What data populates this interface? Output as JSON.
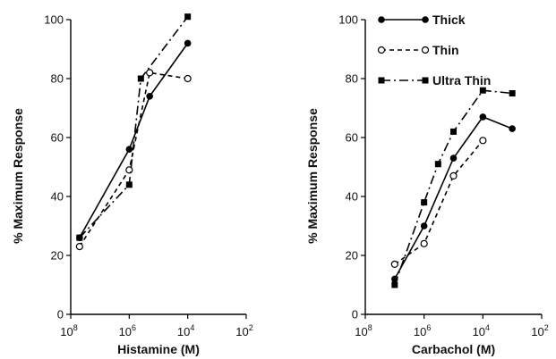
{
  "chart_data": [
    {
      "type": "line",
      "xlabel": "Histamine (M)",
      "ylabel": "% Maximum Response",
      "xscale": "log",
      "xlim": [
        1e-08,
        0.01
      ],
      "ylim": [
        0,
        100
      ],
      "xticks": [
        1e-08,
        1e-06,
        0.0001,
        0.01
      ],
      "yticks": [
        0,
        20,
        40,
        60,
        80,
        100
      ],
      "series": [
        {
          "name": "Thick",
          "x": [
            2e-08,
            1e-06,
            5e-06,
            0.0001
          ],
          "y": [
            26,
            56,
            74,
            92
          ]
        },
        {
          "name": "Thin",
          "x": [
            2e-08,
            1e-06,
            5e-06,
            0.0001
          ],
          "y": [
            23,
            49,
            82,
            80
          ]
        },
        {
          "name": "Ultra Thin",
          "x": [
            2e-08,
            1e-06,
            2.5e-06,
            0.0001
          ],
          "y": [
            26,
            44,
            80,
            101
          ]
        }
      ]
    },
    {
      "type": "line",
      "xlabel": "Carbachol (M)",
      "ylabel": "% Maximum Response",
      "xscale": "log",
      "xlim": [
        1e-08,
        0.01
      ],
      "ylim": [
        0,
        100
      ],
      "xticks": [
        1e-08,
        1e-06,
        0.0001,
        0.01
      ],
      "yticks": [
        0,
        20,
        40,
        60,
        80,
        100
      ],
      "legend_position": "top-right",
      "series": [
        {
          "name": "Thick",
          "x": [
            1e-07,
            1e-06,
            1e-05,
            0.0001,
            0.001
          ],
          "y": [
            12,
            30,
            53,
            67,
            63
          ]
        },
        {
          "name": "Thin",
          "x": [
            1e-07,
            1e-06,
            1e-05,
            0.0001
          ],
          "y": [
            17,
            24,
            47,
            59
          ]
        },
        {
          "name": "Ultra Thin",
          "x": [
            1e-07,
            1e-06,
            3e-06,
            1e-05,
            0.0001,
            0.001
          ],
          "y": [
            10,
            38,
            51,
            62,
            76,
            75
          ]
        }
      ]
    }
  ],
  "styles": {
    "Thick": {
      "marker": "filled-circle",
      "dash": "solid",
      "color": "#000000"
    },
    "Thin": {
      "marker": "open-circle",
      "dash": "dashed",
      "color": "#000000"
    },
    "Ultra Thin": {
      "marker": "filled-square",
      "dash": "dash-dot",
      "color": "#000000"
    }
  }
}
